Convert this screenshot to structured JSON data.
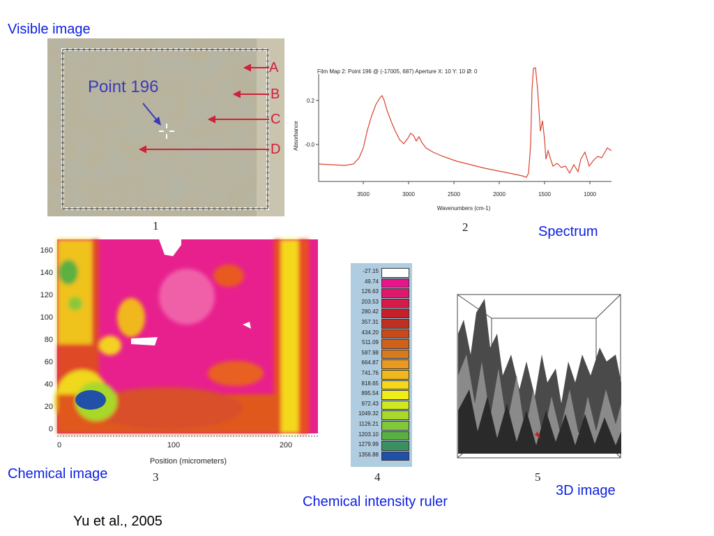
{
  "captions": {
    "visible": "Visible image",
    "spectrum": "Spectrum",
    "chemical": "Chemical image",
    "ruler": "Chemical intensity ruler",
    "three_d": "3D image",
    "citation": "Yu et al., 2005"
  },
  "panel_numbers": [
    "1",
    "2",
    "3",
    "4",
    "5"
  ],
  "visible_image": {
    "point_label": "Point 196",
    "lines": [
      "A",
      "B",
      "C",
      "D"
    ]
  },
  "spectrum": {
    "header": "Film Map 2: Point 196 @ (-17005, 687) Aperture X: 10 Y: 10 Ø: 0",
    "ylabel": "Absorbance",
    "xlabel": "Wavenumbers (cm-1)",
    "yticks": [
      "0.2",
      "-0.0"
    ],
    "xticks": [
      "3500",
      "3000",
      "2500",
      "2000",
      "1500",
      "1000"
    ],
    "line_color": "#d9402b"
  },
  "chemical_image": {
    "xlabel": "Position (micrometers)",
    "xticks": [
      "0",
      "100",
      "200"
    ],
    "yticks": [
      "160",
      "140",
      "120",
      "100",
      "80",
      "60",
      "40",
      "20",
      "0"
    ]
  },
  "ruler": {
    "values": [
      "-27.15",
      "49.74",
      "126.63",
      "203.53",
      "280.42",
      "357.31",
      "434.20",
      "511.09",
      "587.98",
      "664.87",
      "741.76",
      "818.65",
      "895.54",
      "972.43",
      "1049.32",
      "1126.21",
      "1203.10",
      "1279.99",
      "1356.88"
    ],
    "colors": [
      "#ffffff",
      "#e8148c",
      "#e0186c",
      "#d81a4a",
      "#c8202a",
      "#c03020",
      "#c84a1a",
      "#d0601a",
      "#d87a1e",
      "#e89a22",
      "#f0b81c",
      "#f6d818",
      "#f0ec18",
      "#d0e820",
      "#a8d82a",
      "#80c838",
      "#58b040",
      "#3a9060",
      "#2050a8"
    ]
  }
}
